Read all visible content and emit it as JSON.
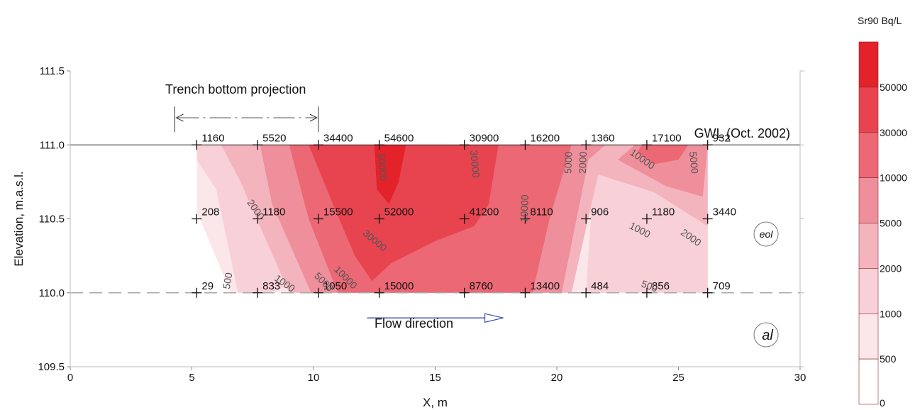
{
  "chart_data": {
    "type": "contour",
    "title": "",
    "xlabel": "X, m",
    "ylabel": "Elevation, m.a.s.l.",
    "xlim": [
      0,
      30
    ],
    "ylim": [
      109.5,
      111.5
    ],
    "x_ticks": [
      "0",
      "5",
      "10",
      "15",
      "20",
      "25",
      "30"
    ],
    "y_ticks": [
      "109.5",
      "110.0",
      "110.5",
      "111.0",
      "111.5"
    ],
    "legend": {
      "title": "Sr90 Bq/L",
      "levels": [
        "0",
        "500",
        "1000",
        "2000",
        "5000",
        "10000",
        "30000",
        "50000"
      ],
      "colors": [
        "#ffffff",
        "#fbe6ea",
        "#f8d0d7",
        "#f4b4be",
        "#ef8f9b",
        "#eb6874",
        "#e74450",
        "#e3222a"
      ]
    },
    "annotations": {
      "trench": "Trench bottom projection",
      "gwl": "GWL (Oct. 2002)",
      "flow": "Flow direction",
      "eol": "eol",
      "al": "al"
    },
    "trench_range": [
      4.3,
      10.2
    ],
    "gwl_elevation": 111.0,
    "boundary_elevation": 110.0,
    "flow_arrow_x": [
      12.2,
      17.8
    ],
    "flow_arrow_y": 109.83,
    "points": [
      {
        "x": 5.2,
        "y": 111.0,
        "label": "1160"
      },
      {
        "x": 7.7,
        "y": 111.0,
        "label": "5520"
      },
      {
        "x": 10.2,
        "y": 111.0,
        "label": "34400"
      },
      {
        "x": 12.7,
        "y": 111.0,
        "label": "54600"
      },
      {
        "x": 16.2,
        "y": 111.0,
        "label": "30900"
      },
      {
        "x": 18.7,
        "y": 111.0,
        "label": "16200"
      },
      {
        "x": 21.2,
        "y": 111.0,
        "label": "1360"
      },
      {
        "x": 23.7,
        "y": 111.0,
        "label": "17100"
      },
      {
        "x": 26.2,
        "y": 111.0,
        "label": "932"
      },
      {
        "x": 5.2,
        "y": 110.5,
        "label": "208"
      },
      {
        "x": 7.7,
        "y": 110.5,
        "label": "1180"
      },
      {
        "x": 10.2,
        "y": 110.5,
        "label": "15500"
      },
      {
        "x": 12.7,
        "y": 110.5,
        "label": "52000"
      },
      {
        "x": 16.2,
        "y": 110.5,
        "label": "41200"
      },
      {
        "x": 18.7,
        "y": 110.5,
        "label": "8110"
      },
      {
        "x": 21.2,
        "y": 110.5,
        "label": "906"
      },
      {
        "x": 23.7,
        "y": 110.5,
        "label": "1180"
      },
      {
        "x": 26.2,
        "y": 110.5,
        "label": "3440"
      },
      {
        "x": 5.2,
        "y": 110.0,
        "label": "29"
      },
      {
        "x": 7.7,
        "y": 110.0,
        "label": "833"
      },
      {
        "x": 10.2,
        "y": 110.0,
        "label": "1050"
      },
      {
        "x": 12.7,
        "y": 110.0,
        "label": "15000"
      },
      {
        "x": 16.2,
        "y": 110.0,
        "label": "8760"
      },
      {
        "x": 18.7,
        "y": 110.0,
        "label": "13400"
      },
      {
        "x": 21.2,
        "y": 110.0,
        "label": "484"
      },
      {
        "x": 23.7,
        "y": 110.0,
        "label": "856"
      },
      {
        "x": 26.2,
        "y": 110.0,
        "label": "709"
      }
    ],
    "regions": [
      {
        "level": "500",
        "polygon": [
          [
            5.2,
            111.0
          ],
          [
            26.2,
            111.0
          ],
          [
            26.2,
            110.0
          ],
          [
            6.6,
            110.0
          ],
          [
            5.2,
            110.55
          ]
        ]
      },
      {
        "level": "1000",
        "polygon": [
          [
            5.2,
            111.0
          ],
          [
            26.2,
            111.0
          ],
          [
            26.2,
            110.0
          ],
          [
            21.2,
            110.0
          ],
          [
            21.4,
            110.5
          ],
          [
            21.2,
            110.8
          ],
          [
            8.2,
            110.0
          ],
          [
            6.9,
            110.0
          ],
          [
            6.0,
            110.7
          ],
          [
            5.2,
            110.9
          ]
        ]
      },
      {
        "level": "2000",
        "polygon": [
          [
            6.2,
            111.0
          ],
          [
            26.2,
            111.0
          ],
          [
            26.2,
            110.45
          ],
          [
            24.0,
            110.68
          ],
          [
            21.7,
            110.8
          ],
          [
            20.6,
            110.0
          ],
          [
            9.0,
            110.0
          ],
          [
            7.0,
            110.75
          ]
        ]
      },
      {
        "level": "5000",
        "polygon": [
          [
            7.8,
            111.0
          ],
          [
            22.0,
            111.0
          ],
          [
            21.3,
            110.9
          ],
          [
            20.2,
            110.0
          ],
          [
            9.9,
            110.0
          ],
          [
            8.3,
            110.6
          ]
        ]
      },
      {
        "level": "5000",
        "polygon": [
          [
            23.2,
            111.0
          ],
          [
            26.2,
            111.0
          ],
          [
            26.0,
            110.65
          ],
          [
            24.5,
            110.72
          ],
          [
            22.5,
            110.9
          ]
        ]
      },
      {
        "level": "10000",
        "polygon": [
          [
            9.0,
            111.0
          ],
          [
            20.6,
            111.0
          ],
          [
            19.7,
            110.5
          ],
          [
            19.0,
            110.0
          ],
          [
            11.0,
            110.0
          ],
          [
            9.8,
            110.5
          ]
        ]
      },
      {
        "level": "10000",
        "polygon": [
          [
            23.5,
            111.0
          ],
          [
            25.4,
            111.0
          ],
          [
            25.0,
            110.9
          ],
          [
            24.0,
            110.87
          ],
          [
            23.3,
            110.95
          ]
        ]
      },
      {
        "level": "30000",
        "polygon": [
          [
            9.8,
            111.0
          ],
          [
            17.6,
            111.0
          ],
          [
            17.2,
            110.6
          ],
          [
            16.6,
            110.45
          ],
          [
            15.0,
            110.35
          ],
          [
            13.2,
            110.2
          ],
          [
            12.4,
            110.08
          ],
          [
            11.7,
            110.25
          ],
          [
            10.8,
            110.6
          ]
        ]
      },
      {
        "level": "50000",
        "polygon": [
          [
            12.5,
            111.0
          ],
          [
            13.8,
            111.0
          ],
          [
            13.5,
            110.75
          ],
          [
            13.1,
            110.6
          ],
          [
            12.6,
            110.7
          ]
        ]
      }
    ],
    "contour_labels": [
      {
        "x": 7.6,
        "y": 110.56,
        "text": "2000",
        "angle": 55
      },
      {
        "x": 6.5,
        "y": 110.08,
        "text": "500",
        "angle": -80
      },
      {
        "x": 8.8,
        "y": 110.06,
        "text": "1000",
        "angle": 35
      },
      {
        "x": 10.4,
        "y": 110.07,
        "text": "5000",
        "angle": 45
      },
      {
        "x": 11.3,
        "y": 110.1,
        "text": "10000",
        "angle": 45
      },
      {
        "x": 12.5,
        "y": 110.35,
        "text": "30000",
        "angle": 40
      },
      {
        "x": 12.8,
        "y": 110.85,
        "text": "50000",
        "angle": 85
      },
      {
        "x": 16.6,
        "y": 110.87,
        "text": "30000",
        "angle": 85
      },
      {
        "x": 18.7,
        "y": 110.57,
        "text": "10000",
        "angle": -88
      },
      {
        "x": 20.5,
        "y": 110.88,
        "text": "5000",
        "angle": -88
      },
      {
        "x": 21.1,
        "y": 110.88,
        "text": "2000",
        "angle": -88
      },
      {
        "x": 23.5,
        "y": 110.9,
        "text": "10000",
        "angle": 35
      },
      {
        "x": 25.6,
        "y": 110.88,
        "text": "5000",
        "angle": 85
      },
      {
        "x": 23.4,
        "y": 110.42,
        "text": "1000",
        "angle": 28
      },
      {
        "x": 25.5,
        "y": 110.37,
        "text": "2000",
        "angle": 35
      },
      {
        "x": 23.8,
        "y": 110.04,
        "text": "500",
        "angle": 20
      }
    ]
  }
}
